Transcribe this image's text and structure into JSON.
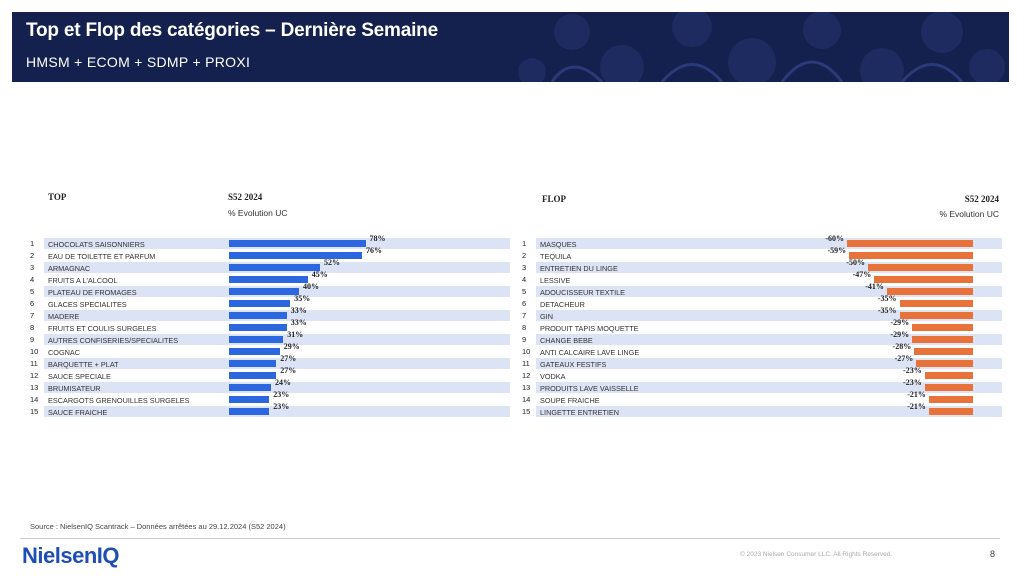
{
  "header": {
    "title": "Top et Flop des catégories – Dernière Semaine",
    "subtitle": "HMSM + ECOM + SDMP + PROXI"
  },
  "chart_data": [
    {
      "type": "bar",
      "orientation": "horizontal",
      "title": "TOP",
      "period": "S52 2024",
      "measure": "% Evolution UC",
      "ranks": [
        "1",
        "2",
        "3",
        "4",
        "5",
        "6",
        "7",
        "8",
        "9",
        "10",
        "11",
        "12",
        "13",
        "14",
        "15"
      ],
      "categories": [
        "CHOCOLATS SAISONNIERS",
        "EAU DE TOILETTE ET PARFUM",
        "ARMAGNAC",
        "FRUITS A L'ALCOOL",
        "PLATEAU DE FROMAGES",
        "GLACES SPECIALITES",
        "MADERE",
        "FRUITS ET COULIS SURGELES",
        "AUTRES CONFISERIES/SPECIALITES",
        "COGNAC",
        "BARQUETTE + PLAT",
        "SAUCE SPECIALE",
        "BRUMISATEUR",
        "ESCARGOTS GRENOUILLES SURGELES",
        "SAUCE FRAICHE"
      ],
      "values": [
        78,
        76,
        52,
        45,
        40,
        35,
        33,
        33,
        31,
        29,
        27,
        27,
        24,
        23,
        23
      ],
      "labels": [
        "78%",
        "76%",
        "52%",
        "45%",
        "40%",
        "35%",
        "33%",
        "33%",
        "31%",
        "29%",
        "27%",
        "27%",
        "24%",
        "23%",
        "23%"
      ],
      "color": "#2d67e0"
    },
    {
      "type": "bar",
      "orientation": "horizontal",
      "title": "FLOP",
      "period": "S52 2024",
      "measure": "% Evolution UC",
      "ranks": [
        "1",
        "2",
        "3",
        "4",
        "5",
        "6",
        "7",
        "8",
        "9",
        "10",
        "11",
        "12",
        "13",
        "14",
        "15"
      ],
      "categories": [
        "MASQUES",
        "TEQUILA",
        "ENTRETIEN DU LINGE",
        "LESSIVE",
        "ADOUCISSEUR TEXTILE",
        "DETACHEUR",
        "GIN",
        "PRODUIT TAPIS MOQUETTE",
        "CHANGE BEBE",
        "ANTI CALCAIRE LAVE LINGE",
        "GATEAUX FESTIFS",
        "VODKA",
        "PRODUITS LAVE VAISSELLE",
        "SOUPE FRAICHE",
        "LINGETTE ENTRETIEN"
      ],
      "values": [
        -60,
        -59,
        -50,
        -47,
        -41,
        -35,
        -35,
        -29,
        -29,
        -28,
        -27,
        -23,
        -23,
        -21,
        -21
      ],
      "labels": [
        "-60%",
        "-59%",
        "-50%",
        "-47%",
        "-41%",
        "-35%",
        "-35%",
        "-29%",
        "-29%",
        "-28%",
        "-27%",
        "-23%",
        "-23%",
        "-21%",
        "-21%"
      ],
      "color": "#e8733a"
    }
  ],
  "footer": {
    "source": "Source : NielsenIQ Scantrack – Données arrêtées au 29.12.2024 (S52 2024)",
    "logo": "NielsenIQ",
    "copyright": "© 2023 Nielsen Consumer LLC. All Rights Reserved.",
    "page": "8"
  }
}
